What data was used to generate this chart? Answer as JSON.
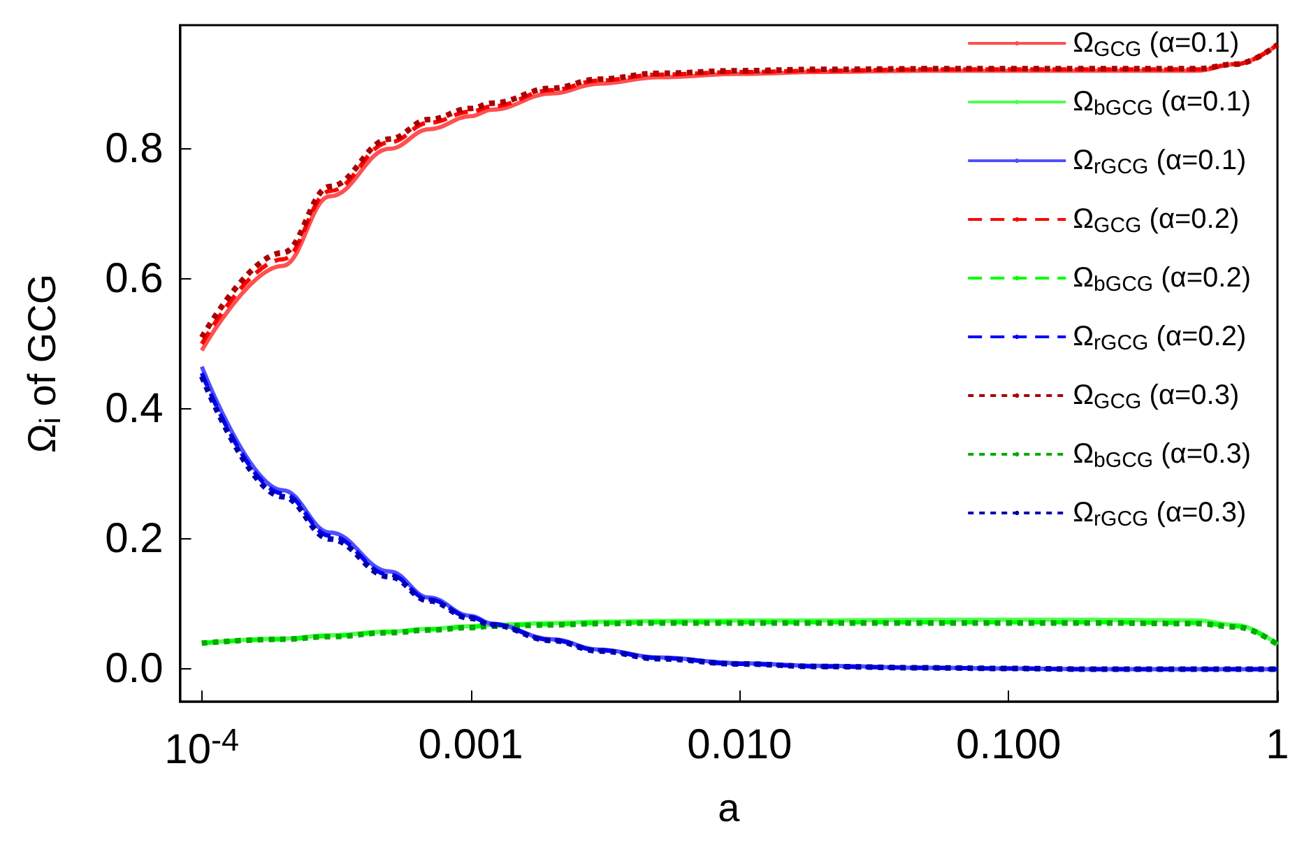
{
  "chart_data": {
    "type": "line",
    "xlabel": "a",
    "ylabel": "Ω$_{i}$ of GCG",
    "log": "x",
    "grid": false,
    "legend": "right",
    "marker": "none",
    "xlim": [
      8.3e-05,
      1
    ],
    "ylim": [
      -0.05,
      0.99
    ],
    "xticks": [
      {
        "value": 0.0001,
        "label": "10$^{-4}$"
      },
      0.001,
      {
        "value": 0.01,
        "label": "0.010"
      },
      {
        "value": 0.1,
        "label": "0.100"
      },
      1
    ],
    "yticks": [
      {
        "value": 0,
        "label": "0.0"
      },
      {
        "value": 0.2,
        "label": "0.2"
      },
      {
        "value": 0.4,
        "label": "0.4"
      },
      {
        "value": 0.6,
        "label": "0.6"
      },
      {
        "value": 0.8,
        "label": "0.8"
      }
    ],
    "x": [
      0.0001,
      0.0002,
      0.0003,
      0.0005,
      0.0007,
      0.001,
      0.0012,
      0.002,
      0.003,
      0.005,
      0.01,
      0.02,
      0.05,
      0.1,
      0.2,
      0.5,
      0.7,
      1
    ],
    "series": [
      {
        "name": "Ω$_{GCG}$ (α=0.1)",
        "color": "#ff5050",
        "line_style": "solid",
        "values": [
          0.49,
          0.62,
          0.727,
          0.8,
          0.83,
          0.85,
          0.86,
          0.885,
          0.9,
          0.91,
          0.915,
          0.918,
          0.92,
          0.92,
          0.92,
          0.92,
          0.93,
          0.96
        ]
      },
      {
        "name": "Ω$_{bGCG}$ (α=0.1)",
        "color": "#50ff50",
        "line_style": "solid",
        "values": [
          0.04,
          0.047,
          0.052,
          0.058,
          0.062,
          0.066,
          0.068,
          0.071,
          0.073,
          0.074,
          0.075,
          0.075,
          0.076,
          0.076,
          0.076,
          0.075,
          0.068,
          0.038
        ]
      },
      {
        "name": "Ω$_{rGCG}$ (α=0.1)",
        "color": "#5050ff",
        "line_style": "solid",
        "values": [
          0.465,
          0.275,
          0.21,
          0.15,
          0.11,
          0.082,
          0.07,
          0.046,
          0.03,
          0.018,
          0.009,
          0.005,
          0.002,
          0.001,
          0,
          0,
          0,
          0
        ]
      },
      {
        "name": "Ω$_{GCG}$ (α=0.2)",
        "color": "#ff0000",
        "line_style": "dashed",
        "values": [
          0.5,
          0.63,
          0.735,
          0.81,
          0.84,
          0.857,
          0.865,
          0.89,
          0.905,
          0.914,
          0.918,
          0.92,
          0.922,
          0.922,
          0.922,
          0.922,
          0.93,
          0.96
        ]
      },
      {
        "name": "Ω$_{bGCG}$ (α=0.2)",
        "color": "#00ff00",
        "line_style": "dashed",
        "values": [
          0.04,
          0.046,
          0.051,
          0.057,
          0.061,
          0.065,
          0.067,
          0.069,
          0.071,
          0.072,
          0.072,
          0.072,
          0.072,
          0.072,
          0.072,
          0.071,
          0.066,
          0.038
        ]
      },
      {
        "name": "Ω$_{rGCG}$ (α=0.2)",
        "color": "#0000ff",
        "line_style": "dashed",
        "values": [
          0.455,
          0.27,
          0.205,
          0.145,
          0.107,
          0.08,
          0.069,
          0.045,
          0.029,
          0.017,
          0.008,
          0.004,
          0.002,
          0.001,
          0,
          0,
          0,
          0
        ]
      },
      {
        "name": "Ω$_{GCG}$ (α=0.3)",
        "color": "#aa0000",
        "line_style": "dotted",
        "values": [
          0.51,
          0.64,
          0.742,
          0.815,
          0.845,
          0.862,
          0.87,
          0.893,
          0.907,
          0.916,
          0.92,
          0.922,
          0.923,
          0.923,
          0.923,
          0.923,
          0.93,
          0.96
        ]
      },
      {
        "name": "Ω$_{bGCG}$ (α=0.3)",
        "color": "#00aa00",
        "line_style": "dotted",
        "values": [
          0.04,
          0.046,
          0.05,
          0.056,
          0.06,
          0.064,
          0.066,
          0.068,
          0.07,
          0.071,
          0.071,
          0.071,
          0.071,
          0.071,
          0.071,
          0.07,
          0.065,
          0.038
        ]
      },
      {
        "name": "Ω$_{rGCG}$ (α=0.3)",
        "color": "#0000aa",
        "line_style": "dotted",
        "values": [
          0.45,
          0.265,
          0.2,
          0.142,
          0.105,
          0.078,
          0.068,
          0.044,
          0.028,
          0.016,
          0.008,
          0.004,
          0.002,
          0.001,
          0,
          0,
          0,
          0
        ]
      }
    ]
  }
}
